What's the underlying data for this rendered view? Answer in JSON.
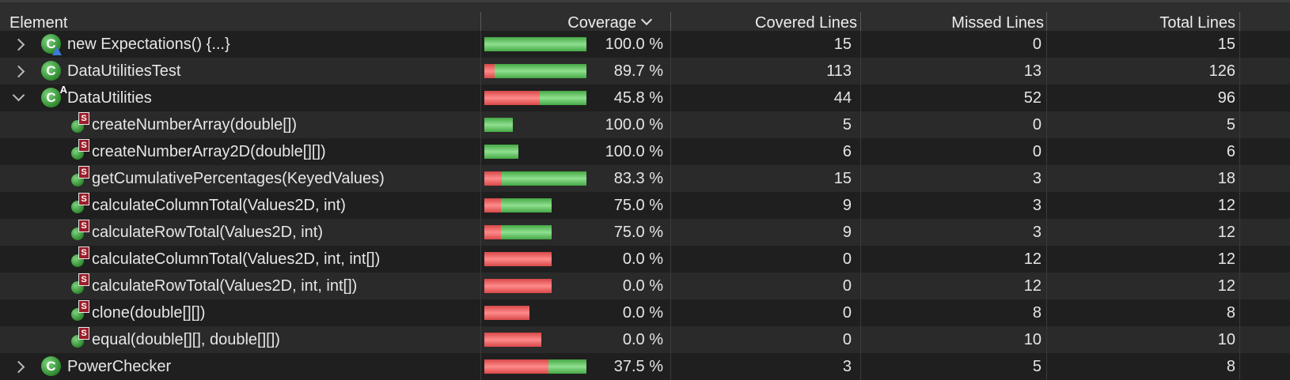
{
  "columns": {
    "element": "Element",
    "coverage": "Coverage",
    "covered": "Covered Lines",
    "missed": "Missed Lines",
    "total": "Total Lines"
  },
  "colors": {
    "covered": "#5cc55c",
    "missed": "#f26363",
    "background": "#1f1f1f",
    "header": "#2e2e2e"
  },
  "rows": [
    {
      "name": "new Expectations() {...}",
      "kind": "anon-class",
      "twisty": "collapsed",
      "indent": 0,
      "coverage": "100.0 %",
      "covered": "15",
      "missed": "0",
      "total": "15",
      "covered_fraction": 1.0,
      "relative_size": 1.0
    },
    {
      "name": "DataUtilitiesTest",
      "kind": "class",
      "twisty": "collapsed",
      "indent": 0,
      "coverage": "89.7 %",
      "covered": "113",
      "missed": "13",
      "total": "126",
      "covered_fraction": 0.897,
      "relative_size": 1.0
    },
    {
      "name": "DataUtilities",
      "kind": "abstract-class",
      "twisty": "expanded",
      "indent": 0,
      "coverage": "45.8 %",
      "covered": "44",
      "missed": "52",
      "total": "96",
      "covered_fraction": 0.458,
      "relative_size": 1.0
    },
    {
      "name": "createNumberArray(double[])",
      "kind": "static-method",
      "indent": 1,
      "coverage": "100.0 %",
      "covered": "5",
      "missed": "0",
      "total": "5",
      "covered_fraction": 1.0,
      "relative_size": 0.28
    },
    {
      "name": "createNumberArray2D(double[][])",
      "kind": "static-method",
      "indent": 1,
      "coverage": "100.0 %",
      "covered": "6",
      "missed": "0",
      "total": "6",
      "covered_fraction": 1.0,
      "relative_size": 0.33
    },
    {
      "name": "getCumulativePercentages(KeyedValues)",
      "kind": "static-method",
      "indent": 1,
      "coverage": "83.3 %",
      "covered": "15",
      "missed": "3",
      "total": "18",
      "covered_fraction": 0.833,
      "relative_size": 1.0
    },
    {
      "name": "calculateColumnTotal(Values2D, int)",
      "kind": "static-method",
      "indent": 1,
      "coverage": "75.0 %",
      "covered": "9",
      "missed": "3",
      "total": "12",
      "covered_fraction": 0.75,
      "relative_size": 0.66
    },
    {
      "name": "calculateRowTotal(Values2D, int)",
      "kind": "static-method",
      "indent": 1,
      "coverage": "75.0 %",
      "covered": "9",
      "missed": "3",
      "total": "12",
      "covered_fraction": 0.75,
      "relative_size": 0.66
    },
    {
      "name": "calculateColumnTotal(Values2D, int, int[])",
      "kind": "static-method",
      "indent": 1,
      "coverage": "0.0 %",
      "covered": "0",
      "missed": "12",
      "total": "12",
      "covered_fraction": 0.0,
      "relative_size": 0.66
    },
    {
      "name": "calculateRowTotal(Values2D, int, int[])",
      "kind": "static-method",
      "indent": 1,
      "coverage": "0.0 %",
      "covered": "0",
      "missed": "12",
      "total": "12",
      "covered_fraction": 0.0,
      "relative_size": 0.66
    },
    {
      "name": "clone(double[][])",
      "kind": "static-method",
      "indent": 1,
      "coverage": "0.0 %",
      "covered": "0",
      "missed": "8",
      "total": "8",
      "covered_fraction": 0.0,
      "relative_size": 0.44
    },
    {
      "name": "equal(double[][], double[][])",
      "kind": "static-method",
      "indent": 1,
      "coverage": "0.0 %",
      "covered": "0",
      "missed": "10",
      "total": "10",
      "covered_fraction": 0.0,
      "relative_size": 0.56
    },
    {
      "name": "PowerChecker",
      "kind": "class",
      "twisty": "collapsed",
      "indent": 0,
      "coverage": "37.5 %",
      "covered": "3",
      "missed": "5",
      "total": "8",
      "covered_fraction": 0.375,
      "relative_size": 1.0
    }
  ]
}
